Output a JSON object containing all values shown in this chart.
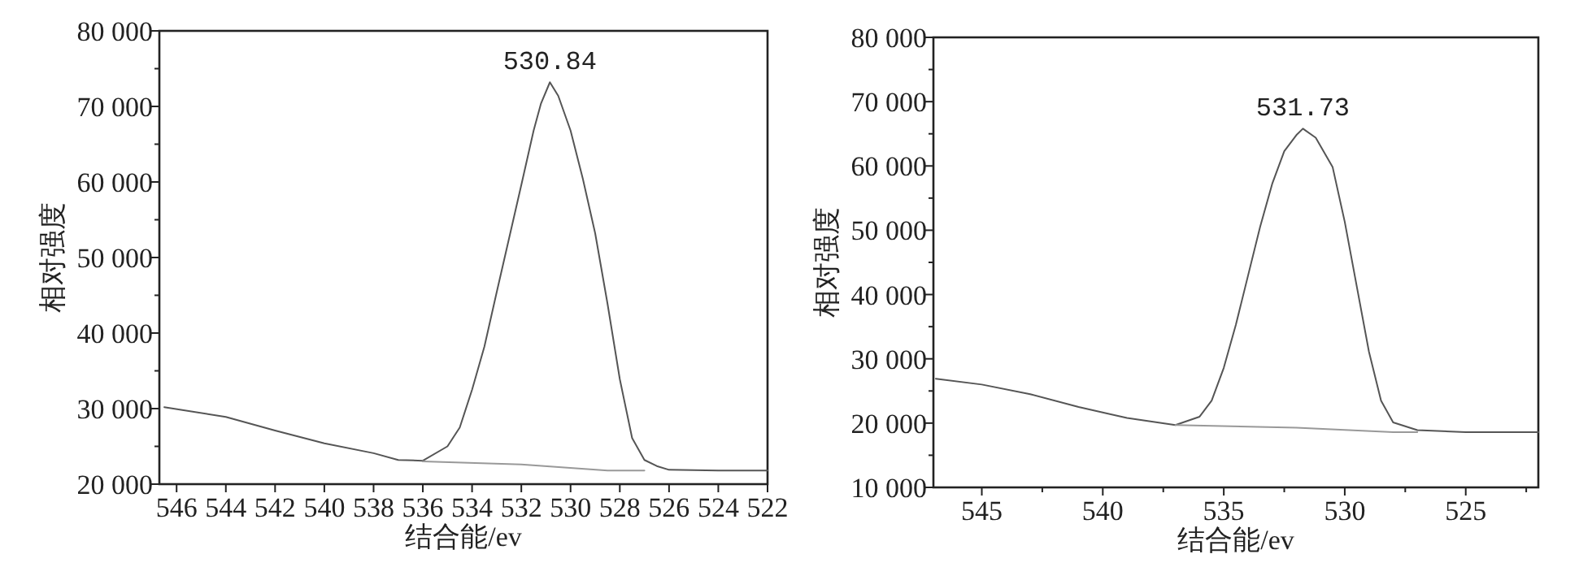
{
  "chart_data": [
    {
      "type": "line",
      "xlabel": "结合能/ev",
      "ylabel": "相对强度",
      "xlim": [
        546.7,
        522
      ],
      "ylim": [
        20000,
        80000
      ],
      "xticks": [
        546,
        544,
        542,
        540,
        538,
        536,
        534,
        532,
        530,
        528,
        526,
        524,
        522
      ],
      "yticks": [
        {
          "value": 20000,
          "label": "20 000"
        },
        {
          "value": 25000,
          "label": null
        },
        {
          "value": 30000,
          "label": "30 000"
        },
        {
          "value": 35000,
          "label": null
        },
        {
          "value": 40000,
          "label": "40 000"
        },
        {
          "value": 45000,
          "label": null
        },
        {
          "value": 50000,
          "label": "50 000"
        },
        {
          "value": 55000,
          "label": null
        },
        {
          "value": 60000,
          "label": "60 000"
        },
        {
          "value": 65000,
          "label": null
        },
        {
          "value": 70000,
          "label": "70 000"
        },
        {
          "value": 75000,
          "label": null
        },
        {
          "value": 80000,
          "label": "80 000"
        }
      ],
      "grid": false,
      "marker": "none",
      "line_style": "solid",
      "annotations": [
        {
          "text": "530.84",
          "x": 530.84,
          "y": 73200
        }
      ],
      "series": [
        {
          "color": "#555555",
          "x": [
            546.5,
            544,
            542,
            540,
            538,
            537,
            536,
            535,
            534.5,
            534,
            533.5,
            533,
            532.5,
            532,
            531.5,
            531.2,
            530.84,
            530.5,
            530,
            529.5,
            529,
            528.5,
            528,
            527.5,
            527,
            526.5,
            526,
            524,
            522
          ],
          "values": [
            30200,
            28900,
            27100,
            25400,
            24100,
            23200,
            23100,
            25000,
            27500,
            32500,
            38200,
            45400,
            52500,
            59600,
            66800,
            70400,
            73200,
            71400,
            66800,
            60400,
            53200,
            43900,
            33900,
            26100,
            23200,
            22400,
            21900,
            21800,
            21800
          ]
        },
        {
          "color": "#999999",
          "x": [
            536,
            532,
            528.5,
            527
          ],
          "values": [
            23000,
            22600,
            21800,
            21800
          ]
        }
      ]
    },
    {
      "type": "line",
      "xlabel": "结合能/ev",
      "ylabel": "相对强度",
      "xlim": [
        547,
        522
      ],
      "ylim": [
        10000,
        80000
      ],
      "xticks": [
        545,
        {
          "value": 542.5,
          "label": null
        },
        540,
        {
          "value": 537.5,
          "label": null
        },
        535,
        {
          "value": 532.5,
          "label": null
        },
        530,
        {
          "value": 527.5,
          "label": null
        },
        525,
        {
          "value": 522.5,
          "label": null
        }
      ],
      "yticks": [
        {
          "value": 10000,
          "label": "10 000"
        },
        {
          "value": 15000,
          "label": null
        },
        {
          "value": 20000,
          "label": "20 000"
        },
        {
          "value": 25000,
          "label": null
        },
        {
          "value": 30000,
          "label": "30 000"
        },
        {
          "value": 35000,
          "label": null
        },
        {
          "value": 40000,
          "label": "40 000"
        },
        {
          "value": 45000,
          "label": null
        },
        {
          "value": 50000,
          "label": "50 000"
        },
        {
          "value": 55000,
          "label": null
        },
        {
          "value": 60000,
          "label": "60 000"
        },
        {
          "value": 65000,
          "label": null
        },
        {
          "value": 70000,
          "label": "70 000"
        },
        {
          "value": 75000,
          "label": null
        },
        {
          "value": 80000,
          "label": "80 000"
        }
      ],
      "grid": false,
      "marker": "none",
      "line_style": "solid",
      "annotations": [
        {
          "text": "531.73",
          "x": 531.73,
          "y": 65800
        }
      ],
      "series": [
        {
          "color": "#555555",
          "x": [
            546.9,
            545,
            543,
            541,
            539,
            537,
            536,
            535.5,
            535,
            534.5,
            534,
            533.5,
            533,
            532.5,
            532,
            531.73,
            531.2,
            530.5,
            530,
            529.5,
            529,
            528.5,
            528,
            527,
            525,
            522
          ],
          "values": [
            26900,
            26000,
            24500,
            22500,
            20800,
            19700,
            21000,
            23500,
            28600,
            35300,
            42900,
            50500,
            57200,
            62300,
            64800,
            65800,
            64400,
            59800,
            51300,
            41200,
            31100,
            23500,
            20100,
            18900,
            18600,
            18600
          ]
        },
        {
          "color": "#999999",
          "x": [
            537,
            532,
            528,
            527
          ],
          "values": [
            19700,
            19300,
            18600,
            18600
          ]
        }
      ]
    }
  ]
}
